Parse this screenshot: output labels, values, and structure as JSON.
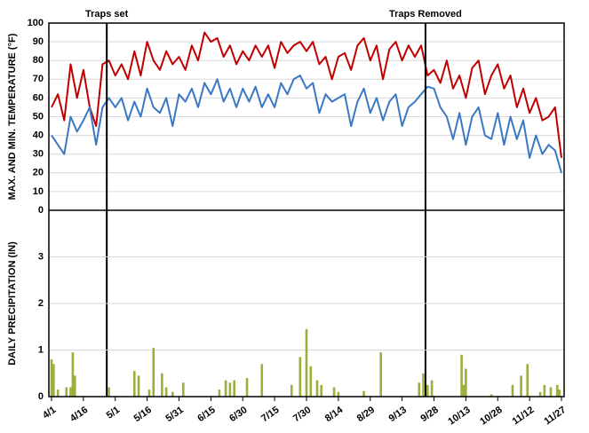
{
  "chart_data": [
    {
      "type": "line",
      "ylabel": "MAX. AND MIN. TEMPERATURE (°F)",
      "x": [
        "4/1",
        "4/4",
        "4/7",
        "4/10",
        "4/13",
        "4/16",
        "4/19",
        "4/22",
        "4/25",
        "4/28",
        "5/1",
        "5/4",
        "5/7",
        "5/10",
        "5/13",
        "5/16",
        "5/19",
        "5/22",
        "5/25",
        "5/28",
        "5/31",
        "6/3",
        "6/6",
        "6/9",
        "6/12",
        "6/15",
        "6/18",
        "6/21",
        "6/24",
        "6/27",
        "6/30",
        "7/3",
        "7/6",
        "7/9",
        "7/12",
        "7/15",
        "7/18",
        "7/21",
        "7/24",
        "7/27",
        "7/30",
        "8/2",
        "8/5",
        "8/8",
        "8/11",
        "8/14",
        "8/17",
        "8/20",
        "8/23",
        "8/26",
        "8/29",
        "9/1",
        "9/4",
        "9/7",
        "9/10",
        "9/13",
        "9/16",
        "9/19",
        "9/22",
        "9/25",
        "9/28",
        "10/1",
        "10/4",
        "10/7",
        "10/10",
        "10/13",
        "10/16",
        "10/19",
        "10/22",
        "10/25",
        "10/28",
        "10/31",
        "11/3",
        "11/6",
        "11/9",
        "11/12",
        "11/15",
        "11/18",
        "11/21",
        "11/24",
        "11/27"
      ],
      "series": [
        {
          "color": "#c00000",
          "values": [
            55,
            62,
            48,
            78,
            60,
            75,
            55,
            45,
            78,
            80,
            72,
            78,
            70,
            85,
            72,
            90,
            80,
            75,
            85,
            78,
            82,
            75,
            88,
            80,
            95,
            90,
            92,
            82,
            88,
            78,
            85,
            80,
            88,
            82,
            88,
            76,
            90,
            84,
            88,
            90,
            85,
            90,
            78,
            82,
            70,
            82,
            84,
            75,
            88,
            92,
            80,
            88,
            70,
            86,
            90,
            80,
            88,
            82,
            88,
            72,
            75,
            68,
            80,
            65,
            72,
            60,
            76,
            80,
            62,
            72,
            78,
            65,
            72,
            55,
            65,
            52,
            60,
            48,
            50,
            55,
            28
          ]
        },
        {
          "color": "#3a78c4",
          "values": [
            40,
            35,
            30,
            50,
            42,
            48,
            55,
            35,
            55,
            60,
            55,
            60,
            48,
            58,
            50,
            65,
            55,
            52,
            60,
            45,
            62,
            58,
            65,
            55,
            68,
            62,
            70,
            58,
            65,
            55,
            65,
            58,
            66,
            55,
            62,
            55,
            68,
            62,
            70,
            72,
            65,
            68,
            52,
            62,
            58,
            60,
            62,
            45,
            58,
            65,
            52,
            60,
            48,
            58,
            62,
            45,
            55,
            58,
            62,
            66,
            65,
            55,
            50,
            38,
            52,
            35,
            50,
            55,
            40,
            38,
            52,
            35,
            50,
            38,
            48,
            28,
            40,
            30,
            35,
            32,
            20
          ]
        }
      ],
      "xlim": [
        "4/1",
        "11/27"
      ],
      "ylim": [
        0,
        100
      ],
      "yticks": [
        0,
        10,
        20,
        30,
        40,
        50,
        60,
        70,
        80,
        90,
        100
      ],
      "grid": true,
      "annotations": [
        {
          "text": "Traps set",
          "x": "4/27"
        },
        {
          "text": "Traps Removed",
          "x": "9/24"
        }
      ]
    },
    {
      "type": "bar",
      "ylabel": "DAILY PRECIPITATION (IN)",
      "x": [
        "4/1",
        "4/2",
        "4/4",
        "4/8",
        "4/10",
        "4/11",
        "4/12",
        "4/28",
        "5/10",
        "5/12",
        "5/17",
        "5/19",
        "5/23",
        "5/25",
        "5/28",
        "6/2",
        "6/19",
        "6/22",
        "6/24",
        "6/26",
        "7/2",
        "7/9",
        "7/23",
        "7/27",
        "7/30",
        "8/1",
        "8/4",
        "8/6",
        "8/12",
        "8/14",
        "8/26",
        "9/3",
        "9/21",
        "9/23",
        "9/25",
        "9/27",
        "10/11",
        "10/12",
        "10/13",
        "10/25",
        "11/4",
        "11/8",
        "11/11",
        "11/17",
        "11/19",
        "11/22",
        "11/25",
        "11/26"
      ],
      "values": [
        0.8,
        0.7,
        0.15,
        0.2,
        0.2,
        0.95,
        0.45,
        0.2,
        0.55,
        0.45,
        0.15,
        1.05,
        0.5,
        0.2,
        0.1,
        0.3,
        0.15,
        0.35,
        0.3,
        0.35,
        0.4,
        0.7,
        0.25,
        0.85,
        1.45,
        0.65,
        0.35,
        0.25,
        0.2,
        0.1,
        0.12,
        0.95,
        0.3,
        0.5,
        0.25,
        0.35,
        0.9,
        0.25,
        0.6,
        0.05,
        0.25,
        0.45,
        0.7,
        0.1,
        0.25,
        0.2,
        0.25,
        0.15
      ],
      "color": "#9aaf3c",
      "xlim": [
        "4/1",
        "11/27"
      ],
      "xticks": [
        "4/1",
        "4/16",
        "5/1",
        "5/16",
        "5/31",
        "6/15",
        "6/30",
        "7/15",
        "7/30",
        "8/14",
        "8/29",
        "9/13",
        "9/28",
        "10/13",
        "10/28",
        "11/12",
        "11/27"
      ],
      "ylim": [
        0,
        4
      ],
      "yticks": [
        0,
        1,
        2,
        3
      ],
      "grid": true
    }
  ]
}
